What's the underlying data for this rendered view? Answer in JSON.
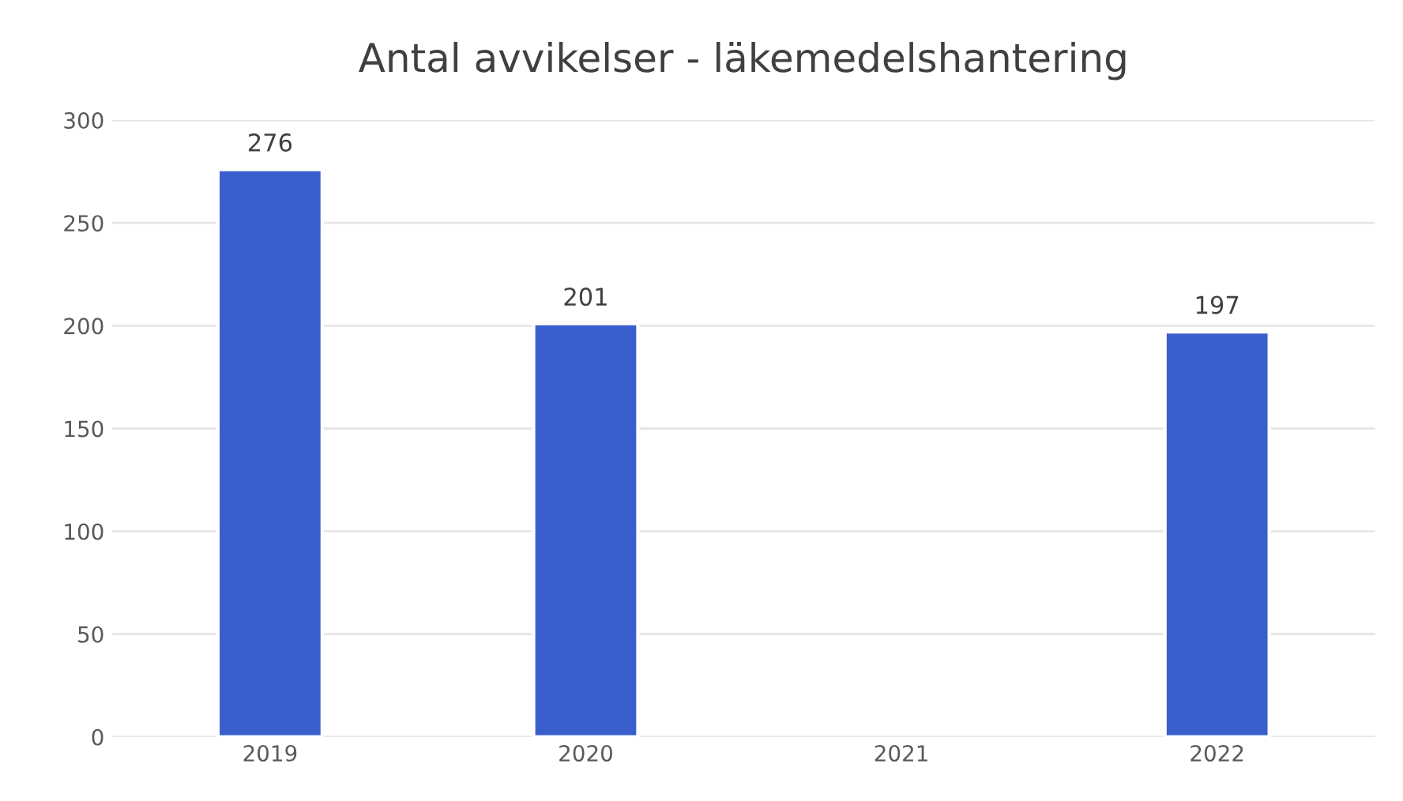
{
  "chart_data": {
    "type": "bar",
    "title": "Antal avvikelser - läkemedelshantering",
    "categories": [
      "2019",
      "2020",
      "2021",
      "2022"
    ],
    "values": [
      276,
      201,
      null,
      197
    ],
    "color": "#3a5fcd",
    "ylim": [
      0,
      300
    ],
    "yticks": [
      0,
      50,
      100,
      150,
      200,
      250,
      300
    ],
    "data_labels": true,
    "grid": "y"
  }
}
